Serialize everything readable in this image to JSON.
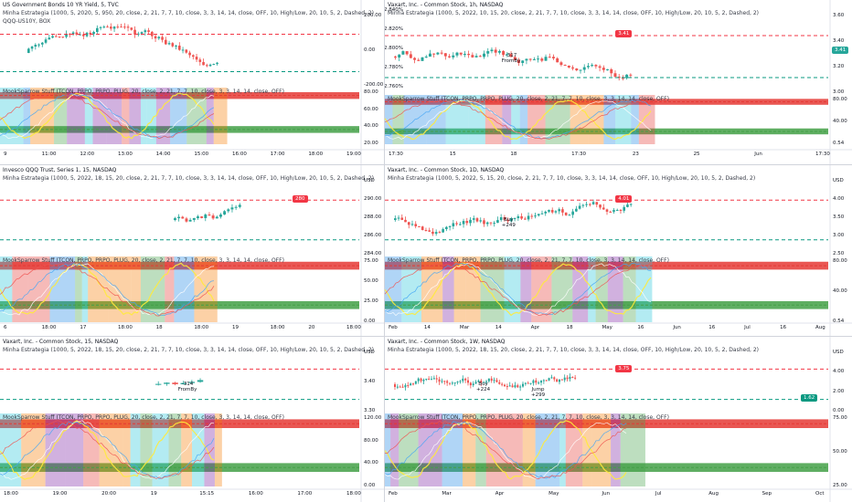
{
  "panels": [
    {
      "title": "US Government Bonds 10 YR Yield, 5, TVC",
      "study": "Minha Estrategia (1000, 5, 2020, 5, 950, 20, close, 2, 21, 7, 7, 10, close, 3, 3, 14, 14, close, OFF, 10, High/Low, 20, 10, 5, 2, Dashed, 2)",
      "study2": "QQQ-US10Y, BOX",
      "osc": "MookSparrow Stuff (TCON, PRPO, PRPO, PLUG, 20, close, 2, 21, 7, 7, 10, close, 3, 3, 14, 14, close, OFF)",
      "price_ticks": [
        "200.00",
        "0.00",
        "-200.00"
      ],
      "osc_ticks": [
        "80.00",
        "60.00",
        "40.00",
        "20.00"
      ],
      "time_ticks": [
        "9",
        "11:00",
        "12:00",
        "13:00",
        "14:00",
        "15:00",
        "16:00",
        "17:00",
        "18:00",
        "19:00"
      ]
    },
    {
      "title": "Vaxart, Inc. - Common Stock, 1h, NASDAQ",
      "study": "Minha Estrategia (1000, 5, 2022, 10, 15, 20, close, 2, 21, 7, 7, 10, close, 3, 3, 14, 14, close, OFF, 10, High/Low, 20, 10, 5, 2, Dashed, 2)",
      "osc": "MookSparrow Stuff (TCON, PRPO, PRPO, PLUG, 20, close, 2, 21, 7, 7, 10, close, 3, 3, 14, 14, close, OFF)",
      "price_ticks": [
        "3.60",
        "3.40",
        "3.20",
        "3.00"
      ],
      "left_ticks": [
        "2.840%",
        "2.820%",
        "2.800%",
        "2.780%",
        "2.760%"
      ],
      "osc_ticks": [
        "80.00",
        "40.00",
        "0.54"
      ],
      "time_ticks": [
        "17:30",
        "15",
        "18",
        "17:30",
        "23",
        "25",
        "Jun",
        "17:30"
      ],
      "badge": "3.41",
      "badge_right": "3.41",
      "annotation": "-317\nFromBy"
    },
    {
      "title": "Invesco QQQ Trust, Series 1, 15, NASDAQ",
      "study": "Minha Estrategia (1000, 5, 2022, 18, 15, 20, close, 2, 21, 7, 7, 10, close, 3, 3, 14, 14, close, OFF, 10, High/Low, 20, 10, 5, 2, Dashed, 2)",
      "osc": "MookSparrow Stuff (TCON, PRPO, PRPO, PLUG, 20, close, 2, 21, 7, 7, 10, close, 3, 3, 14, 14, close, OFF)",
      "price_ticks": [
        "USD",
        "290.00",
        "288.00",
        "286.00",
        "284.00"
      ],
      "osc_ticks": [
        "75.00",
        "50.00",
        "25.00",
        "0.00"
      ],
      "time_ticks": [
        "6",
        "18:00",
        "17",
        "18:00",
        "18",
        "18:00",
        "19",
        "18:00",
        "20",
        "18:00"
      ],
      "badge": "280"
    },
    {
      "title": "Vaxart, Inc. - Common Stock, 1D, NASDAQ",
      "study": "Minha Estrategia (1000, 5, 2022, 5, 15, 20, close, 2, 21, 7, 7, 10, close, 3, 3, 14, 14, close, OFF, 10, High/Low, 20, 10, 5, 2, Dashed, 2)",
      "osc": "MookSparrow Stuff (TCON, PRPO, PRPO, PLUG, 20, close, 2, 21, 7, 7, 10, close, 3, 3, 14, 14, close, OFF)",
      "price_ticks": [
        "USD",
        "4.00",
        "3.50",
        "3.00",
        "2.50"
      ],
      "osc_ticks": [
        "80.00",
        "40.00",
        "0.54"
      ],
      "time_ticks": [
        "Feb",
        "14",
        "Mar",
        "14",
        "Apr",
        "18",
        "May",
        "16",
        "Jun",
        "16",
        "Jul",
        "16",
        "Aug"
      ],
      "badge": "4.01",
      "annotation": "Buy\n+249"
    },
    {
      "title": "Vaxart, Inc. - Common Stock, 15, NASDAQ",
      "study": "Minha Estrategia (1000, 5, 2022, 18, 15, 20, close, 2, 21, 7, 7, 10, close, 3, 3, 14, 14, close, OFF, 10, High/Low, 20, 10, 5, 2, Dashed, 2)",
      "osc": "MookSparrow Stuff (TCON, PRPO, PRPO, PLUG, 20, close, 2, 21, 7, 7, 10, close, 3, 3, 14, 14, close, OFF)",
      "price_ticks": [
        "USD",
        "3.40",
        "3.30"
      ],
      "osc_ticks": [
        "120.00",
        "80.00",
        "40.00",
        "0.00"
      ],
      "time_ticks": [
        "18:00",
        "19:00",
        "20:00",
        "19",
        "15:15",
        "16:00",
        "17:00",
        "18:00"
      ],
      "annotation": "-314\nFromBy"
    },
    {
      "title": "Vaxart, Inc. - Common Stock, 1W, NASDAQ",
      "study": "Minha Estrategia (1000, 5, 2022, 18, 15, 20, close, 2, 21, 7, 7, 10, close, 3, 3, 14, 14, close, OFF, 10, High/Low, 20, 10, 5, 2, Dashed, 2)",
      "osc": "MookSparrow Stuff (TCON, PRPO, PRPO, PLUG, 20, close, 2, 21, 7, 7, 10, close, 3, 3, 14, 14, close, OFF)",
      "price_ticks": [
        "USD",
        "4.00",
        "2.00",
        "0.00"
      ],
      "osc_ticks": [
        "75.00",
        "50.00",
        "25.00"
      ],
      "time_ticks": [
        "Feb",
        "Mar",
        "Apr",
        "May",
        "Jun",
        "Jul",
        "Aug",
        "Sep",
        "Oct"
      ],
      "badge": "3.75",
      "badge2": "1.62",
      "annotation": "Buy\n+224",
      "annotation2": "Jump\n+299"
    }
  ],
  "colors": {
    "up": "#26a69a",
    "down": "#ef5350",
    "red_band": "#e53935",
    "green_band": "#43a047",
    "dash_red": "#f23645",
    "dash_green": "#089981"
  }
}
